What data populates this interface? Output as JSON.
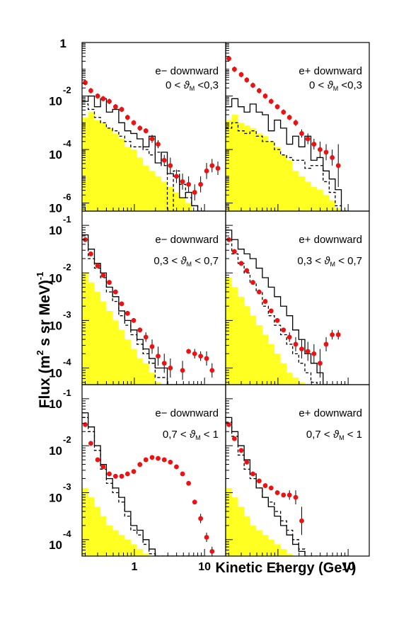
{
  "figure": {
    "ylabel_main": "Flux (m",
    "ylabel_sup1": "2",
    "ylabel_mid": " s sr MeV)",
    "ylabel_sup2": "-1",
    "xlabel": "Kinetic Energy (GeV)",
    "xaxis": {
      "type": "log",
      "range": [
        0.18,
        20
      ],
      "major_ticks": [
        1,
        10
      ],
      "major_tick_labels": [
        "1",
        "10"
      ]
    },
    "colors": {
      "fill": "#ffff22",
      "points": "#ee1111",
      "lines": "#000000"
    }
  },
  "chart_data": [
    {
      "type": "line",
      "title": "e− downward",
      "range_label": {
        "lo": "0 <",
        "mid": "ϑ",
        "sub": "M",
        "hi": "<0,3"
      },
      "ylog": [
        -6.3,
        0
      ],
      "y_ticks": [
        {
          "base": "1",
          "exp": ""
        },
        {
          "base": "10",
          "exp": "-2"
        },
        {
          "base": "10",
          "exp": "-4"
        },
        {
          "base": "10",
          "exp": "-6"
        }
      ],
      "y_tick_values": [
        0,
        -2,
        -4,
        -6
      ],
      "bins": [
        0.18,
        0.22,
        0.27,
        0.33,
        0.4,
        0.49,
        0.6,
        0.73,
        0.89,
        1.09,
        1.33,
        1.62,
        1.98,
        2.42,
        2.95,
        3.6,
        4.4,
        5.37,
        6.55,
        8.0,
        9.77
      ],
      "fill": [
        -2.8,
        -2.6,
        -2.9,
        -3.0,
        -3.2,
        -3.4,
        -3.6,
        -3.9,
        -4.0,
        -4.3,
        -4.6,
        -4.8,
        -5.0,
        -5.2,
        -5.4,
        -5.6,
        -5.8,
        -6.0,
        -6.3,
        -6.3
      ],
      "solid": [
        -2.2,
        -2.0,
        -2.4,
        -2.1,
        -2.6,
        -2.5,
        -3.0,
        -3.3,
        -3.4,
        -3.6,
        -3.9,
        -3.5,
        -4.5,
        -4.1,
        -4.9,
        -5.0,
        -5.8,
        -5.6,
        -6.1,
        -6.3
      ],
      "dashed": [
        -2.3,
        -2.5,
        -2.8,
        -3.0,
        -3.2,
        -3.3,
        -3.5,
        -3.7,
        -3.9,
        -3.9,
        -4.0,
        -4.2,
        -4.1,
        -4.6,
        -6.3,
        -4.8,
        -5.3,
        -5.8,
        -6.1,
        -6.3
      ],
      "points": {
        "x": [
          0.2,
          0.24,
          0.3,
          0.36,
          0.44,
          0.54,
          0.66,
          0.8,
          0.98,
          1.2,
          1.46,
          1.79,
          2.18,
          2.67,
          3.26,
          3.98,
          4.86,
          5.93,
          7.24,
          8.8,
          10.7,
          12.8,
          15.5
        ],
        "y": [
          -1.5,
          -1.8,
          -2.0,
          -2.1,
          -2.2,
          -2.4,
          -2.5,
          -2.8,
          -3.0,
          -3.2,
          -3.3,
          -3.6,
          -3.8,
          -4.4,
          -4.6,
          -5.0,
          -5.2,
          -5.3,
          -5.6,
          -5.3,
          -4.8,
          -4.6,
          -4.7
        ],
        "err": [
          0.1,
          0.1,
          0.1,
          0.1,
          0.1,
          0.1,
          0.1,
          0.1,
          0.1,
          0.1,
          0.1,
          0.15,
          0.15,
          0.2,
          0.3,
          0.25,
          0.3,
          0.3,
          0.3,
          0.3,
          0.3,
          0.25,
          0.25
        ]
      }
    },
    {
      "type": "line",
      "title": "e+ downward",
      "range_label": {
        "lo": "0 <",
        "mid": "ϑ",
        "sub": "M",
        "hi": "<0,3"
      },
      "ylog": [
        -6.3,
        0
      ],
      "y_ticks": [],
      "y_tick_values": [
        0,
        -2,
        -4,
        -6
      ],
      "bins": [
        0.18,
        0.22,
        0.27,
        0.33,
        0.4,
        0.49,
        0.6,
        0.73,
        0.89,
        1.09,
        1.33,
        1.62,
        1.98,
        2.42,
        2.95,
        3.6,
        4.4,
        5.37,
        6.55,
        8.0,
        9.77
      ],
      "fill": [
        -2.9,
        -2.7,
        -3.0,
        -3.1,
        -3.2,
        -3.4,
        -3.5,
        -3.7,
        -3.9,
        -4.2,
        -4.4,
        -4.8,
        -5.0,
        -5.2,
        -5.4,
        -5.5,
        -5.7,
        -5.9,
        -6.2,
        -6.3
      ],
      "solid": [
        -2.4,
        -2.1,
        -2.4,
        -2.6,
        -2.3,
        -2.6,
        -2.7,
        -3.3,
        -2.9,
        -3.2,
        -3.8,
        -3.5,
        -3.9,
        -3.5,
        -4.4,
        -4.3,
        -4.8,
        -5.1,
        -5.5,
        -6.3
      ],
      "dashed": [
        -3.2,
        -3.0,
        -3.3,
        -3.4,
        -3.3,
        -3.5,
        -3.7,
        -3.7,
        -4.0,
        -4.2,
        -4.3,
        -4.4,
        -4.4,
        -4.7,
        -4.6,
        -4.6,
        -5.2,
        -5.6,
        -6.1,
        -6.3
      ],
      "points": {
        "x": [
          0.2,
          0.24,
          0.3,
          0.36,
          0.44,
          0.54,
          0.66,
          0.8,
          0.98,
          1.2,
          1.46,
          1.79,
          2.18,
          2.67,
          3.26,
          3.98,
          4.86,
          5.93,
          7.24
        ],
        "y": [
          -0.6,
          -1.0,
          -1.2,
          -1.4,
          -1.6,
          -1.8,
          -2.0,
          -2.2,
          -2.4,
          -2.6,
          -2.8,
          -3.0,
          -3.4,
          -3.6,
          -3.8,
          -4.0,
          -4.1,
          -4.3,
          -4.6
        ],
        "err": [
          0.1,
          0.1,
          0.1,
          0.1,
          0.1,
          0.1,
          0.1,
          0.1,
          0.1,
          0.1,
          0.1,
          0.12,
          0.15,
          0.2,
          0.2,
          0.3,
          0.3,
          0.3,
          0.8
        ]
      }
    },
    {
      "type": "line",
      "title": "e− downward",
      "range_label": {
        "lo": "0,3 <",
        "mid": "ϑ",
        "sub": "M",
        "hi": "< 0,7"
      },
      "ylog": [
        -4.35,
        -0.7
      ],
      "y_ticks": [
        {
          "base": "10",
          "exp": "-1"
        },
        {
          "base": "10",
          "exp": "-2"
        },
        {
          "base": "10",
          "exp": "-3"
        },
        {
          "base": "10",
          "exp": "-4"
        }
      ],
      "y_tick_values": [
        -1,
        -2,
        -3,
        -4
      ],
      "bins": [
        0.18,
        0.22,
        0.27,
        0.33,
        0.4,
        0.49,
        0.6,
        0.73,
        0.89,
        1.09,
        1.33,
        1.62,
        1.98,
        2.42,
        2.95,
        3.6,
        4.4,
        5.37,
        6.55,
        8.0,
        9.77
      ],
      "fill": [
        -2.0,
        -2.2,
        -2.4,
        -2.6,
        -2.8,
        -3.0,
        -3.2,
        -3.4,
        -3.6,
        -3.8,
        -3.9,
        -4.1,
        -4.3,
        -4.35,
        -4.35,
        -4.35,
        -4.35,
        -4.35,
        -4.35,
        -4.35
      ],
      "solid": [
        -1.2,
        -1.5,
        -1.8,
        -2.0,
        -2.3,
        -2.5,
        -2.8,
        -3.0,
        -3.2,
        -3.4,
        -3.6,
        -3.8,
        -4.0,
        -4.0,
        -4.35,
        -4.35,
        -4.35,
        -4.35,
        -4.35,
        -4.35
      ],
      "dashed": [
        -1.3,
        -1.7,
        -1.9,
        -2.1,
        -2.4,
        -2.6,
        -2.9,
        -3.1,
        -3.3,
        -3.5,
        -3.7,
        -3.9,
        -4.2,
        -4.2,
        -4.35,
        -4.35,
        -4.35,
        -4.35,
        -4.35,
        -4.35
      ],
      "points": {
        "x": [
          0.2,
          0.24,
          0.3,
          0.36,
          0.44,
          0.54,
          0.66,
          0.8,
          0.98,
          1.2,
          1.46,
          1.79,
          2.18,
          2.67,
          3.26,
          4.86,
          5.93,
          7.24,
          8.8,
          10.7,
          12.8
        ],
        "y": [
          -1.3,
          -1.6,
          -1.85,
          -2.05,
          -2.2,
          -2.4,
          -2.65,
          -2.85,
          -3.0,
          -3.2,
          -3.35,
          -3.55,
          -3.75,
          -3.9,
          -4.0,
          -4.05,
          -3.65,
          -3.7,
          -3.75,
          -3.8,
          -4.05
        ],
        "err": [
          0.05,
          0.05,
          0.05,
          0.05,
          0.05,
          0.05,
          0.05,
          0.05,
          0.05,
          0.05,
          0.1,
          0.15,
          0.2,
          0.2,
          0.2,
          0.2,
          0.05,
          0.1,
          0.1,
          0.15,
          0.15
        ]
      }
    },
    {
      "type": "line",
      "title": "e+ downward",
      "range_label": {
        "lo": "0,3 <",
        "mid": "ϑ",
        "sub": "M",
        "hi": "< 0,7"
      },
      "ylog": [
        -4.35,
        -0.7
      ],
      "y_ticks": [],
      "y_tick_values": [
        -1,
        -2,
        -3,
        -4
      ],
      "bins": [
        0.18,
        0.22,
        0.27,
        0.33,
        0.4,
        0.49,
        0.6,
        0.73,
        0.89,
        1.09,
        1.33,
        1.62,
        1.98,
        2.42,
        2.95,
        3.6,
        4.4,
        5.37,
        6.55,
        8.0,
        9.77
      ],
      "fill": [
        -2.1,
        -2.3,
        -2.5,
        -2.7,
        -2.9,
        -3.1,
        -3.3,
        -3.5,
        -3.7,
        -3.9,
        -4.1,
        -4.2,
        -4.3,
        -4.35,
        -4.35,
        -4.35,
        -4.35,
        -4.35,
        -4.35,
        -4.35
      ],
      "solid": [
        -1.1,
        -1.3,
        -1.5,
        -1.6,
        -1.7,
        -1.9,
        -2.1,
        -2.3,
        -2.5,
        -2.7,
        -2.9,
        -3.2,
        -3.4,
        -3.7,
        -3.9,
        -4.1,
        -4.35,
        -4.35,
        -4.35,
        -4.35
      ],
      "dashed": [
        -1.3,
        -1.6,
        -1.8,
        -2.0,
        -2.2,
        -2.4,
        -2.7,
        -2.9,
        -3.1,
        -3.3,
        -3.5,
        -3.7,
        -3.9,
        -4.1,
        -4.3,
        -4.35,
        -4.35,
        -4.35,
        -4.35,
        -4.35
      ],
      "points": {
        "x": [
          0.2,
          0.24,
          0.3,
          0.36,
          0.44,
          0.54,
          0.66,
          0.8,
          0.98,
          1.2,
          1.46,
          1.79,
          2.18,
          2.67,
          3.26,
          3.98,
          4.86,
          5.93,
          7.24
        ],
        "y": [
          -1.3,
          -1.55,
          -1.8,
          -1.95,
          -2.2,
          -2.4,
          -2.6,
          -2.8,
          -3.0,
          -3.2,
          -3.35,
          -3.5,
          -3.6,
          -3.65,
          -3.7,
          -3.9,
          -3.5,
          -3.3,
          -3.3
        ],
        "err": [
          0.05,
          0.05,
          0.05,
          0.05,
          0.05,
          0.05,
          0.05,
          0.05,
          0.05,
          0.05,
          0.1,
          0.15,
          0.2,
          0.2,
          0.2,
          0.3,
          0.15,
          0.1,
          0.1
        ]
      }
    },
    {
      "type": "line",
      "title": "e− downward",
      "range_label": {
        "lo": "0,7 <",
        "mid": "ϑ",
        "sub": "M",
        "hi": "< 1"
      },
      "ylog": [
        -4.35,
        -0.7
      ],
      "y_ticks": [
        {
          "base": "10",
          "exp": "-1"
        },
        {
          "base": "10",
          "exp": "-2"
        },
        {
          "base": "10",
          "exp": "-3"
        },
        {
          "base": "10",
          "exp": "-4"
        }
      ],
      "y_tick_values": [
        -1,
        -2,
        -3,
        -4
      ],
      "bins": [
        0.18,
        0.22,
        0.27,
        0.33,
        0.4,
        0.49,
        0.6,
        0.73,
        0.89,
        1.09,
        1.33,
        1.62,
        1.98,
        2.42,
        2.95,
        3.6,
        4.4,
        5.37,
        6.55,
        8.0,
        9.77
      ],
      "fill": [
        -2.9,
        -3.1,
        -3.3,
        -3.5,
        -3.7,
        -3.8,
        -3.9,
        -4.0,
        -4.1,
        -4.2,
        -4.3,
        -4.35,
        -4.35,
        -4.35,
        -4.35,
        -4.35,
        -4.35,
        -4.35,
        -4.35,
        -4.35
      ],
      "solid": [
        -1.3,
        -1.6,
        -2.0,
        -2.4,
        -2.7,
        -2.9,
        -3.1,
        -3.4,
        -3.7,
        -3.8,
        -4.0,
        -4.2,
        -4.35,
        -4.35,
        -4.35,
        -4.35,
        -4.35,
        -4.35,
        -4.35,
        -4.35
      ],
      "dashed": [
        -1.4,
        -1.7,
        -2.1,
        -2.5,
        -2.8,
        -3.0,
        -3.2,
        -3.5,
        -3.8,
        -3.9,
        -4.1,
        -4.3,
        -4.35,
        -4.35,
        -4.35,
        -4.35,
        -4.35,
        -4.35,
        -4.35,
        -4.35
      ],
      "points": {
        "x": [
          0.2,
          0.24,
          0.3,
          0.36,
          0.44,
          0.54,
          0.66,
          0.8,
          0.98,
          1.2,
          1.46,
          1.79,
          2.18,
          2.67,
          3.26,
          3.98,
          4.86,
          5.93,
          7.24,
          8.8,
          10.7,
          12.8
        ],
        "y": [
          -1.55,
          -1.95,
          -2.3,
          -2.45,
          -2.6,
          -2.65,
          -2.65,
          -2.6,
          -2.55,
          -2.4,
          -2.3,
          -2.25,
          -2.27,
          -2.3,
          -2.35,
          -2.45,
          -2.6,
          -2.8,
          -3.2,
          -3.55,
          -3.95,
          -4.25
        ],
        "err": [
          0.05,
          0.05,
          0.05,
          0.05,
          0.05,
          0.05,
          0.05,
          0.05,
          0.05,
          0.05,
          0.05,
          0.05,
          0.05,
          0.05,
          0.05,
          0.05,
          0.05,
          0.05,
          0.05,
          0.1,
          0.1,
          0.1
        ]
      }
    },
    {
      "type": "line",
      "title": "e+ downward",
      "range_label": {
        "lo": "0,7 <",
        "mid": "ϑ",
        "sub": "M",
        "hi": "< 1"
      },
      "ylog": [
        -4.35,
        -0.7
      ],
      "y_ticks": [],
      "y_tick_values": [
        -1,
        -2,
        -3,
        -4
      ],
      "bins": [
        0.18,
        0.22,
        0.27,
        0.33,
        0.4,
        0.49,
        0.6,
        0.73,
        0.89,
        1.09,
        1.33,
        1.62,
        1.98,
        2.42,
        2.95,
        3.6,
        4.4,
        5.37,
        6.55,
        8.0,
        9.77
      ],
      "fill": [
        -2.9,
        -3.1,
        -3.3,
        -3.5,
        -3.7,
        -3.8,
        -3.9,
        -4.0,
        -4.1,
        -4.2,
        -4.3,
        -4.35,
        -4.35,
        -4.35,
        -4.35,
        -4.35,
        -4.35,
        -4.35,
        -4.35,
        -4.35
      ],
      "solid": [
        -1.4,
        -1.7,
        -2.0,
        -2.3,
        -2.6,
        -2.9,
        -3.1,
        -3.3,
        -3.5,
        -3.7,
        -3.9,
        -4.1,
        -4.25,
        -4.35,
        -4.35,
        -4.35,
        -4.35,
        -4.35,
        -4.35,
        -4.35
      ],
      "dashed": [
        -1.5,
        -1.8,
        -2.2,
        -2.5,
        -2.7,
        -2.9,
        -3.1,
        -3.2,
        -3.4,
        -3.6,
        -3.8,
        -4.0,
        -4.2,
        -4.35,
        -4.35,
        -4.35,
        -4.35,
        -4.35,
        -4.35,
        -4.35
      ],
      "points": {
        "x": [
          0.2,
          0.24,
          0.3,
          0.36,
          0.44,
          0.54,
          0.66,
          0.8,
          0.98,
          1.2,
          1.46,
          1.79,
          2.18
        ],
        "y": [
          -1.55,
          -1.85,
          -2.1,
          -2.35,
          -2.6,
          -2.75,
          -2.85,
          -2.9,
          -3.0,
          -3.05,
          -3.05,
          -3.1,
          -3.6
        ],
        "err": [
          0.05,
          0.05,
          0.05,
          0.05,
          0.05,
          0.05,
          0.05,
          0.05,
          0.05,
          0.05,
          0.1,
          0.15,
          0.3
        ]
      }
    }
  ]
}
